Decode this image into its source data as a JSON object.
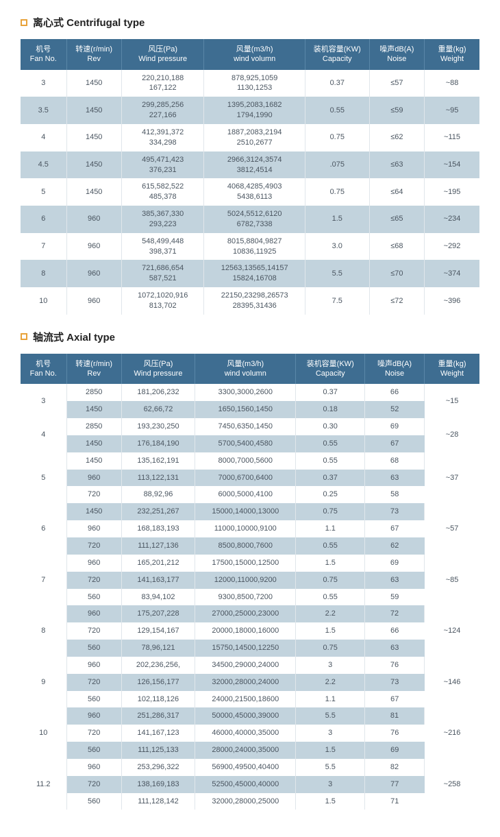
{
  "centrifugal": {
    "title": "离心式 Centrifugal type",
    "headers": [
      "机号\nFan No.",
      "转速(r/min)\nRev",
      "风压(Pa)\nWind pressure",
      "风量(m3/h)\nwind volumn",
      "装机容量(KW)\nCapacity",
      "噪声dB(A)\nNoise",
      "重量(kg)\nWeight"
    ],
    "rows": [
      {
        "fan": "3",
        "rev": "1450",
        "wp": "220,210,188\n167,122",
        "wv": "878,925,1059\n1130,1253",
        "cap": "0.37",
        "noise": "≤57",
        "wt": "~88"
      },
      {
        "fan": "3.5",
        "rev": "1450",
        "wp": "299,285,256\n227,166",
        "wv": "1395,2083,1682\n1794,1990",
        "cap": "0.55",
        "noise": "≤59",
        "wt": "~95"
      },
      {
        "fan": "4",
        "rev": "1450",
        "wp": "412,391,372\n334,298",
        "wv": "1887,2083,2194\n2510,2677",
        "cap": "0.75",
        "noise": "≤62",
        "wt": "~115"
      },
      {
        "fan": "4.5",
        "rev": "1450",
        "wp": "495,471,423\n376,231",
        "wv": "2966,3124,3574\n3812,4514",
        "cap": ".075",
        "noise": "≤63",
        "wt": "~154"
      },
      {
        "fan": "5",
        "rev": "1450",
        "wp": "615,582,522\n485,378",
        "wv": "4068,4285,4903\n5438,6113",
        "cap": "0.75",
        "noise": "≤64",
        "wt": "~195"
      },
      {
        "fan": "6",
        "rev": "960",
        "wp": "385,367,330\n293,223",
        "wv": "5024,5512,6120\n6782,7338",
        "cap": "1.5",
        "noise": "≤65",
        "wt": "~234"
      },
      {
        "fan": "7",
        "rev": "960",
        "wp": "548,499,448\n398,371",
        "wv": "8015,8804,9827\n10836,11925",
        "cap": "3.0",
        "noise": "≤68",
        "wt": "~292"
      },
      {
        "fan": "8",
        "rev": "960",
        "wp": "721,686,654\n587,521",
        "wv": "12563,13565,14157\n15824,16708",
        "cap": "5.5",
        "noise": "≤70",
        "wt": "~374"
      },
      {
        "fan": "10",
        "rev": "960",
        "wp": "1072,1020,916\n813,702",
        "wv": "22150,23298,26573\n28395,31436",
        "cap": "7.5",
        "noise": "≤72",
        "wt": "~396"
      }
    ]
  },
  "axial": {
    "title": "轴流式 Axial type",
    "headers": [
      "机号\nFan No.",
      "转速(r/min)\nRev",
      "风压(Pa)\nWind pressure",
      "风量(m3/h)\nwind volumn",
      "装机容量(KW)\nCapacity",
      "噪声dB(A)\nNoise",
      "重量(kg)\nWeight"
    ],
    "groups": [
      {
        "fan": "3",
        "wt": "~15",
        "rows": [
          {
            "rev": "2850",
            "wp": "181,206,232",
            "wv": "3300,3000,2600",
            "cap": "0.37",
            "noise": "66"
          },
          {
            "rev": "1450",
            "wp": "62,66,72",
            "wv": "1650,1560,1450",
            "cap": "0.18",
            "noise": "52"
          }
        ]
      },
      {
        "fan": "4",
        "wt": "~28",
        "rows": [
          {
            "rev": "2850",
            "wp": "193,230,250",
            "wv": "7450,6350,1450",
            "cap": "0.30",
            "noise": "69"
          },
          {
            "rev": "1450",
            "wp": "176,184,190",
            "wv": "5700,5400,4580",
            "cap": "0.55",
            "noise": "67"
          }
        ]
      },
      {
        "fan": "5",
        "wt": "~37",
        "rows": [
          {
            "rev": "1450",
            "wp": "135,162,191",
            "wv": "8000,7000,5600",
            "cap": "0.55",
            "noise": "68"
          },
          {
            "rev": "960",
            "wp": "113,122,131",
            "wv": "7000,6700,6400",
            "cap": "0.37",
            "noise": "63"
          },
          {
            "rev": "720",
            "wp": "88,92,96",
            "wv": "6000,5000,4100",
            "cap": "0.25",
            "noise": "58"
          }
        ]
      },
      {
        "fan": "6",
        "wt": "~57",
        "rows": [
          {
            "rev": "1450",
            "wp": "232,251,267",
            "wv": "15000,14000,13000",
            "cap": "0.75",
            "noise": "73"
          },
          {
            "rev": "960",
            "wp": "168,183,193",
            "wv": "11000,10000,9100",
            "cap": "1.1",
            "noise": "67"
          },
          {
            "rev": "720",
            "wp": "111,127,136",
            "wv": "8500,8000,7600",
            "cap": "0.55",
            "noise": "62"
          }
        ]
      },
      {
        "fan": "7",
        "wt": "~85",
        "rows": [
          {
            "rev": "960",
            "wp": "165,201,212",
            "wv": "17500,15000,12500",
            "cap": "1.5",
            "noise": "69"
          },
          {
            "rev": "720",
            "wp": "141,163,177",
            "wv": "12000,11000,9200",
            "cap": "0.75",
            "noise": "63"
          },
          {
            "rev": "560",
            "wp": "83,94,102",
            "wv": "9300,8500,7200",
            "cap": "0.55",
            "noise": "59"
          }
        ]
      },
      {
        "fan": "8",
        "wt": "~124",
        "rows": [
          {
            "rev": "960",
            "wp": "175,207,228",
            "wv": "27000,25000,23000",
            "cap": "2.2",
            "noise": "72"
          },
          {
            "rev": "720",
            "wp": "129,154,167",
            "wv": "20000,18000,16000",
            "cap": "1.5",
            "noise": "66"
          },
          {
            "rev": "560",
            "wp": "78,96,121",
            "wv": "15750,14500,12250",
            "cap": "0.75",
            "noise": "63"
          }
        ]
      },
      {
        "fan": "9",
        "wt": "~146",
        "rows": [
          {
            "rev": "960",
            "wp": "202,236,256,",
            "wv": "34500,29000,24000",
            "cap": "3",
            "noise": "76"
          },
          {
            "rev": "720",
            "wp": "126,156,177",
            "wv": "32000,28000,24000",
            "cap": "2.2",
            "noise": "73"
          },
          {
            "rev": "560",
            "wp": "102,118,126",
            "wv": "24000,21500,18600",
            "cap": "1.1",
            "noise": "67"
          }
        ]
      },
      {
        "fan": "10",
        "wt": "~216",
        "rows": [
          {
            "rev": "960",
            "wp": "251,286,317",
            "wv": "50000,45000,39000",
            "cap": "5.5",
            "noise": "81"
          },
          {
            "rev": "720",
            "wp": "141,167,123",
            "wv": "46000,40000,35000",
            "cap": "3",
            "noise": "76"
          },
          {
            "rev": "560",
            "wp": "111,125,133",
            "wv": "28000,24000,35000",
            "cap": "1.5",
            "noise": "69"
          }
        ]
      },
      {
        "fan": "11.2",
        "wt": "~258",
        "rows": [
          {
            "rev": "960",
            "wp": "253,296,322",
            "wv": "56900,49500,40400",
            "cap": "5.5",
            "noise": "82"
          },
          {
            "rev": "720",
            "wp": "138,169,183",
            "wv": "52500,45000,40000",
            "cap": "3",
            "noise": "77"
          },
          {
            "rev": "560",
            "wp": "111,128,142",
            "wv": "32000,28000,25000",
            "cap": "1.5",
            "noise": "71"
          }
        ]
      }
    ]
  },
  "style": {
    "header_bg": "#3e6d91",
    "header_fg": "#ffffff",
    "row_even_bg": "#c2d3dd",
    "row_odd_bg": "#ffffff",
    "accent": "#e8a23a"
  }
}
